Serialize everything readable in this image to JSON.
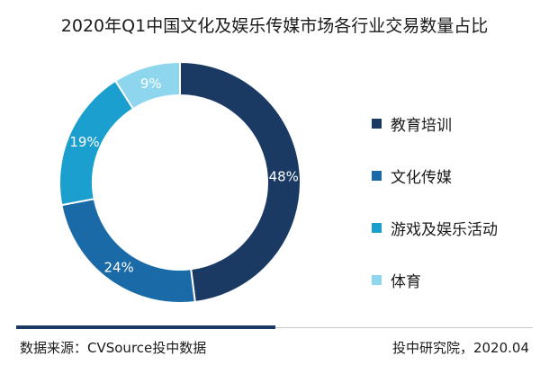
{
  "chart_data": {
    "type": "pie",
    "title": "2020年Q1中国文化及娱乐传媒市场各行业交易数量占比",
    "categories": [
      "教育培训",
      "文化传媒",
      "游戏及娱乐活动",
      "体育"
    ],
    "values": [
      48,
      24,
      19,
      9
    ],
    "value_labels": [
      "48%",
      "24%",
      "19%",
      "9%"
    ],
    "colors": [
      "#1b3a63",
      "#1a6aa8",
      "#1a9fcf",
      "#8dd6ee"
    ],
    "legend_position": "right",
    "donut": true
  },
  "footer": {
    "source": "数据来源：CVSource投中数据",
    "credit": "投中研究院，2020.04"
  }
}
